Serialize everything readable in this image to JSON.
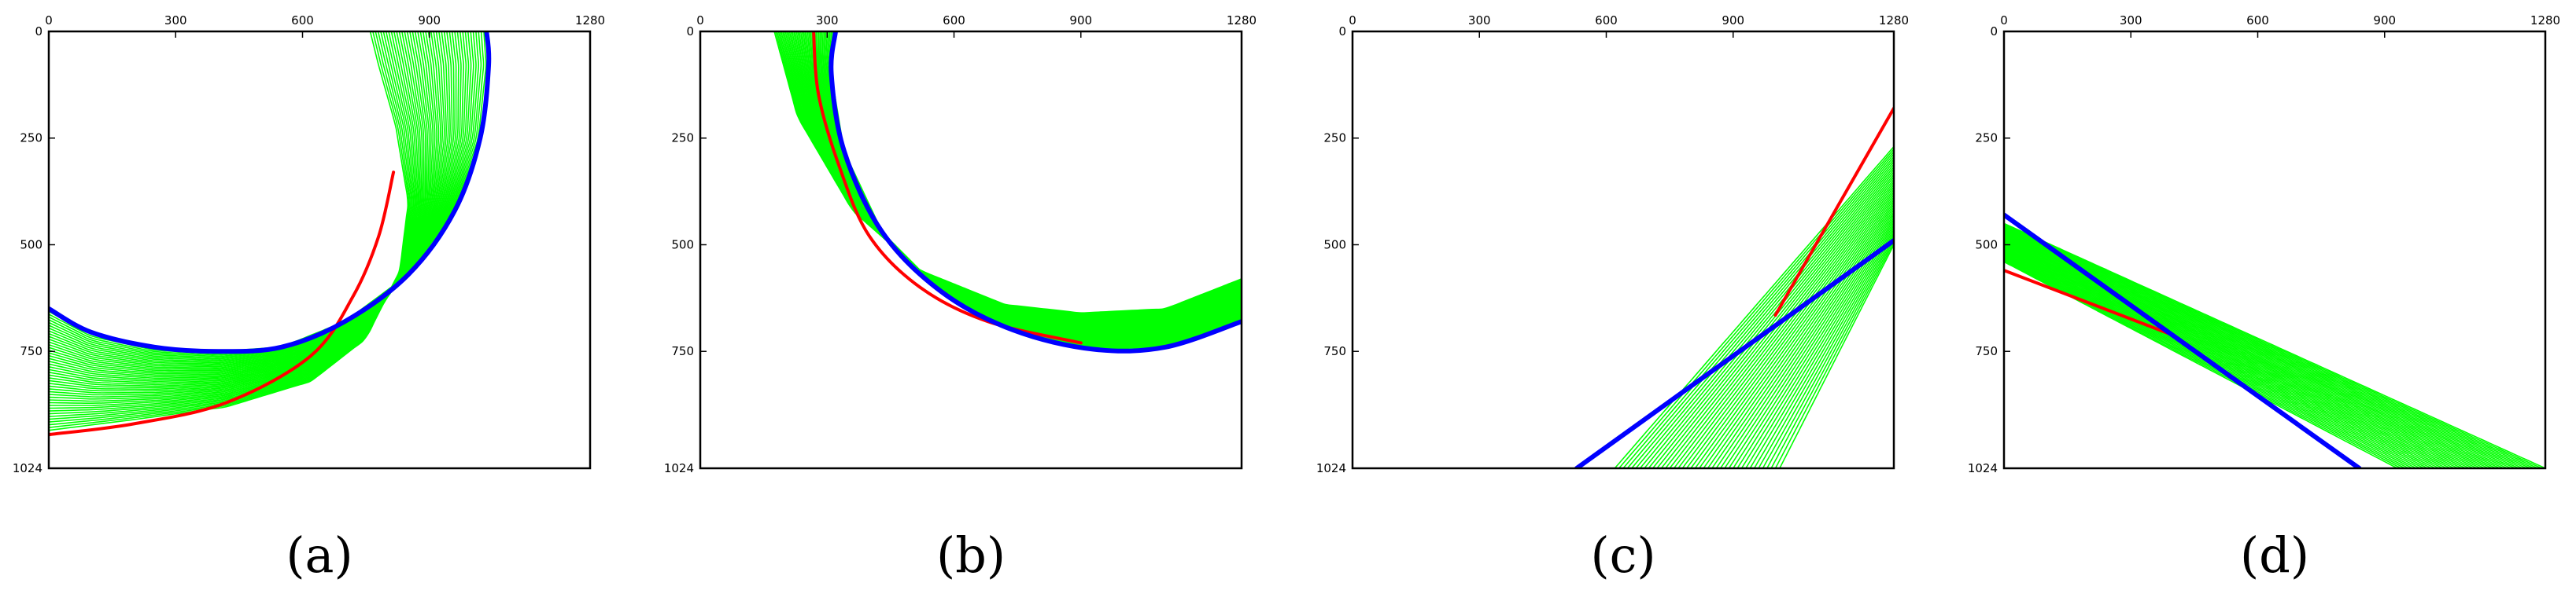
{
  "colors": {
    "background_line": "#00ff00",
    "reference_line": "#ff0000",
    "estimate_line": "#0000ff",
    "frame": "#000000"
  },
  "chart_data": [
    {
      "type": "line",
      "panel_label": "(a)",
      "xticks": [
        "0",
        "300",
        "600",
        "900",
        "1280"
      ],
      "yticks": [
        "0",
        "250",
        "500",
        "750",
        "1024"
      ],
      "xlim": [
        0,
        1280
      ],
      "ylim": [
        0,
        1024
      ],
      "y_inverted": true,
      "red": {
        "points": [
          [
            0,
            945
          ],
          [
            200,
            920
          ],
          [
            420,
            870
          ],
          [
            620,
            760
          ],
          [
            720,
            620
          ],
          [
            780,
            480
          ],
          [
            815,
            330
          ]
        ]
      },
      "blue": {
        "points": [
          [
            0,
            650
          ],
          [
            100,
            705
          ],
          [
            250,
            740
          ],
          [
            400,
            750
          ],
          [
            550,
            740
          ],
          [
            700,
            680
          ],
          [
            850,
            570
          ],
          [
            960,
            420
          ],
          [
            1020,
            250
          ],
          [
            1040,
            80
          ],
          [
            1035,
            0
          ]
        ]
      },
      "green_family": {
        "count": 45,
        "start": [
          [
            0,
            650
          ],
          [
            100,
            705
          ],
          [
            250,
            740
          ],
          [
            400,
            750
          ],
          [
            550,
            740
          ],
          [
            700,
            680
          ],
          [
            850,
            570
          ],
          [
            960,
            420
          ],
          [
            1020,
            250
          ],
          [
            1040,
            80
          ],
          [
            1035,
            0
          ]
        ],
        "end": [
          [
            0,
            935
          ],
          [
            200,
            910
          ],
          [
            420,
            880
          ],
          [
            620,
            820
          ],
          [
            750,
            720
          ],
          [
            830,
            560
          ],
          [
            850,
            400
          ],
          [
            820,
            220
          ],
          [
            780,
            80
          ],
          [
            760,
            0
          ]
        ]
      }
    },
    {
      "type": "line",
      "panel_label": "(b)",
      "xticks": [
        "0",
        "300",
        "600",
        "900",
        "1280"
      ],
      "yticks": [
        "0",
        "250",
        "500",
        "750",
        "1024"
      ],
      "xlim": [
        0,
        1280
      ],
      "ylim": [
        0,
        1024
      ],
      "y_inverted": true,
      "red": {
        "points": [
          [
            268,
            0
          ],
          [
            280,
            150
          ],
          [
            330,
            320
          ],
          [
            400,
            480
          ],
          [
            520,
            600
          ],
          [
            680,
            680
          ],
          [
            900,
            730
          ]
        ]
      },
      "blue": {
        "points": [
          [
            320,
            0
          ],
          [
            310,
            100
          ],
          [
            340,
            280
          ],
          [
            430,
            470
          ],
          [
            570,
            610
          ],
          [
            740,
            700
          ],
          [
            930,
            745
          ],
          [
            1100,
            740
          ],
          [
            1280,
            680
          ]
        ]
      },
      "green_family": {
        "count": 45,
        "start": [
          [
            320,
            0
          ],
          [
            310,
            100
          ],
          [
            340,
            280
          ],
          [
            430,
            470
          ],
          [
            570,
            610
          ],
          [
            740,
            700
          ],
          [
            930,
            745
          ],
          [
            1100,
            740
          ],
          [
            1280,
            680
          ]
        ],
        "end": [
          [
            175,
            0
          ],
          [
            230,
            200
          ],
          [
            360,
            420
          ],
          [
            520,
            560
          ],
          [
            720,
            640
          ],
          [
            900,
            660
          ],
          [
            1100,
            650
          ],
          [
            1280,
            580
          ]
        ]
      }
    },
    {
      "type": "line",
      "panel_label": "(c)",
      "xticks": [
        "0",
        "300",
        "600",
        "900",
        "1280"
      ],
      "yticks": [
        "0",
        "250",
        "500",
        "750",
        "1024"
      ],
      "xlim": [
        0,
        1280
      ],
      "ylim": [
        0,
        1024
      ],
      "y_inverted": true,
      "red": {
        "points": [
          [
            1000,
            665
          ],
          [
            1280,
            180
          ]
        ]
      },
      "blue": {
        "points": [
          [
            530,
            1024
          ],
          [
            1280,
            490
          ]
        ]
      },
      "green_family": {
        "count": 40,
        "start": [
          [
            620,
            1024
          ],
          [
            1280,
            270
          ]
        ],
        "end": [
          [
            1010,
            1024
          ],
          [
            1280,
            500
          ]
        ]
      }
    },
    {
      "type": "line",
      "panel_label": "(d)",
      "xticks": [
        "0",
        "300",
        "600",
        "900",
        "1280"
      ],
      "yticks": [
        "0",
        "250",
        "500",
        "750",
        "1024"
      ],
      "xlim": [
        0,
        1280
      ],
      "ylim": [
        0,
        1024
      ],
      "y_inverted": true,
      "red": {
        "points": [
          [
            0,
            560
          ],
          [
            400,
            712
          ]
        ]
      },
      "blue": {
        "points": [
          [
            0,
            430
          ],
          [
            840,
            1024
          ]
        ]
      },
      "green_family": {
        "count": 40,
        "start": [
          [
            0,
            450
          ],
          [
            1280,
            1024
          ]
        ],
        "end": [
          [
            0,
            540
          ],
          [
            930,
            1024
          ]
        ]
      }
    }
  ]
}
